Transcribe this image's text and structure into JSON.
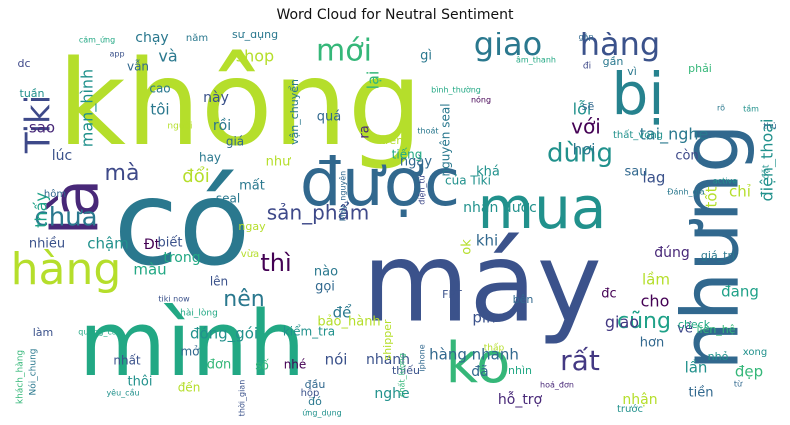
{
  "chart_data": {
    "type": "wordcloud",
    "title": "Word Cloud for Neutral Sentiment",
    "background": "#ffffff",
    "colormap": "viridis",
    "words": [
      {
        "text": "không",
        "weight": 1.0,
        "color": "#b5de2b"
      },
      {
        "text": "có",
        "weight": 0.95,
        "color": "#2a788e"
      },
      {
        "text": "máy",
        "weight": 0.93,
        "color": "#3b528b"
      },
      {
        "text": "mình",
        "weight": 0.82,
        "color": "#22a884"
      },
      {
        "text": "nhưng",
        "weight": 0.8,
        "color": "#31688e"
      },
      {
        "text": "được",
        "weight": 0.65,
        "color": "#31688e"
      },
      {
        "text": "là",
        "weight": 0.62,
        "color": "#482878"
      },
      {
        "text": "mua",
        "weight": 0.58,
        "color": "#21918c"
      },
      {
        "text": "bị",
        "weight": 0.55,
        "color": "#26828e"
      },
      {
        "text": "ko",
        "weight": 0.52,
        "color": "#35b779"
      },
      {
        "text": "hàng",
        "weight": 0.42,
        "color": "#b5de2b"
      },
      {
        "text": "Tiki",
        "weight": 0.36,
        "color": "#3e4989"
      },
      {
        "text": "giao",
        "weight": 0.32,
        "color": "#2a788e"
      },
      {
        "text": "hàng",
        "weight": 0.32,
        "color": "#3b528b"
      },
      {
        "text": "mới",
        "weight": 0.29,
        "color": "#35b779"
      },
      {
        "text": "chưa",
        "weight": 0.26,
        "color": "#2a788e"
      },
      {
        "text": "dùng",
        "weight": 0.26,
        "color": "#21918c"
      },
      {
        "text": "rất",
        "weight": 0.26,
        "color": "#443983"
      },
      {
        "text": "thì",
        "weight": 0.23,
        "color": "#440154"
      },
      {
        "text": "nên",
        "weight": 0.21,
        "color": "#2a788e"
      },
      {
        "text": "mà",
        "weight": 0.2,
        "color": "#3e4989"
      },
      {
        "text": "cũng",
        "weight": 0.2,
        "color": "#1fa188"
      },
      {
        "text": "sản_phẩm",
        "weight": 0.17,
        "color": "#3e4989"
      },
      {
        "text": "với",
        "weight": 0.16,
        "color": "#440154"
      },
      {
        "text": "đổi",
        "weight": 0.14,
        "color": "#b5de2b"
      },
      {
        "text": "man_hình",
        "weight": 0.13,
        "color": "#21918c"
      },
      {
        "text": "lỗi",
        "weight": 0.13,
        "color": "#21918c"
      },
      {
        "text": "thấy",
        "weight": 0.13,
        "color": "#1fa188"
      },
      {
        "text": "điện_thoại",
        "weight": 0.13,
        "color": "#21918c"
      },
      {
        "text": "lại",
        "weight": 0.12,
        "color": "#35b779"
      },
      {
        "text": "sao",
        "weight": 0.12,
        "color": "#482878"
      },
      {
        "text": "shop",
        "weight": 0.12,
        "color": "#b5de2b"
      },
      {
        "text": "và",
        "weight": 0.12,
        "color": "#2a788e"
      },
      {
        "text": "tôi",
        "weight": 0.12,
        "color": "#2a788e"
      },
      {
        "text": "gì",
        "weight": 0.11,
        "color": "#2a788e"
      },
      {
        "text": "khi",
        "weight": 0.11,
        "color": "#31688e"
      },
      {
        "text": "chậm",
        "weight": 0.11,
        "color": "#21918c"
      },
      {
        "text": "màu",
        "weight": 0.11,
        "color": "#22a884"
      },
      {
        "text": "tai_nghe",
        "weight": 0.11,
        "color": "#2a788e"
      },
      {
        "text": "lầm",
        "weight": 0.11,
        "color": "#b5de2b"
      },
      {
        "text": "cho",
        "weight": 0.11,
        "color": "#440154"
      },
      {
        "text": "giao",
        "weight": 0.1,
        "color": "#443983"
      },
      {
        "text": "đẹp",
        "weight": 0.1,
        "color": "#35b779"
      },
      {
        "text": "hơi",
        "weight": 0.1,
        "color": "#2a788e"
      },
      {
        "text": "lag",
        "weight": 0.1,
        "color": "#3b528b"
      },
      {
        "text": "chỉ",
        "weight": 0.1,
        "color": "#b5de2b"
      },
      {
        "text": "đang",
        "weight": 0.1,
        "color": "#1fa188"
      },
      {
        "text": "tốt",
        "weight": 0.1,
        "color": "#b5de2b"
      },
      {
        "text": "lúc",
        "weight": 0.09,
        "color": "#3b528b"
      },
      {
        "text": "Đt",
        "weight": 0.09,
        "color": "#440154"
      },
      {
        "text": "đóng_gói",
        "weight": 0.09,
        "color": "#21918c"
      },
      {
        "text": "để",
        "weight": 0.09,
        "color": "#2a788e"
      },
      {
        "text": "pin",
        "weight": 0.09,
        "color": "#3b528b"
      },
      {
        "text": "hàng nhanh",
        "weight": 0.09,
        "color": "#31688e"
      },
      {
        "text": "lần",
        "weight": 0.09,
        "color": "#21918c"
      },
      {
        "text": "nói",
        "weight": 0.09,
        "color": "#3b528b"
      },
      {
        "text": "nhanh",
        "weight": 0.09,
        "color": "#3b528b"
      },
      {
        "text": "đã",
        "weight": 0.09,
        "color": "#31688e"
      },
      {
        "text": "nghe",
        "weight": 0.09,
        "color": "#21918c"
      },
      {
        "text": "hỗ_trợ",
        "weight": 0.09,
        "color": "#482878"
      },
      {
        "text": "nhận",
        "weight": 0.09,
        "color": "#b5de2b"
      },
      {
        "text": "chạy",
        "weight": 0.08,
        "color": "#2a788e"
      },
      {
        "text": "này",
        "weight": 0.08,
        "color": "#3b528b"
      },
      {
        "text": "rồi",
        "weight": 0.08,
        "color": "#2a788e"
      },
      {
        "text": "quá",
        "weight": 0.08,
        "color": "#31688e"
      },
      {
        "text": "ngày",
        "weight": 0.08,
        "color": "#31688e"
      },
      {
        "text": "như",
        "weight": 0.08,
        "color": "#b5de2b"
      },
      {
        "text": "mất",
        "weight": 0.08,
        "color": "#2a788e"
      },
      {
        "text": "khá",
        "weight": 0.08,
        "color": "#21918c"
      },
      {
        "text": "nhận được",
        "weight": 0.08,
        "color": "#21918c"
      },
      {
        "text": "trong",
        "weight": 0.08,
        "color": "#22a884"
      },
      {
        "text": "biết",
        "weight": 0.08,
        "color": "#3b528b"
      },
      {
        "text": "đúng",
        "weight": 0.08,
        "color": "#482878"
      },
      {
        "text": "còn",
        "weight": 0.08,
        "color": "#3e4989"
      },
      {
        "text": "sau",
        "weight": 0.08,
        "color": "#31688e"
      },
      {
        "text": "nhiều",
        "weight": 0.07,
        "color": "#3b528b"
      },
      {
        "text": "gọi",
        "weight": 0.07,
        "color": "#31688e"
      },
      {
        "text": "lên",
        "weight": 0.07,
        "color": "#3b528b"
      },
      {
        "text": "nào",
        "weight": 0.07,
        "color": "#2a788e"
      },
      {
        "text": "hơn",
        "weight": 0.07,
        "color": "#31688e"
      },
      {
        "text": "đc",
        "weight": 0.07,
        "color": "#440154"
      },
      {
        "text": "bảo_hành",
        "weight": 0.07,
        "color": "#b5de2b"
      },
      {
        "text": "đơn",
        "weight": 0.07,
        "color": "#35b779"
      },
      {
        "text": "thôi",
        "weight": 0.07,
        "color": "#21918c"
      },
      {
        "text": "về",
        "weight": 0.07,
        "color": "#3e4989"
      },
      {
        "text": "tiền",
        "weight": 0.07,
        "color": "#31688e"
      },
      {
        "text": "ra",
        "weight": 0.07,
        "color": "#482878"
      },
      {
        "text": "ok",
        "weight": 0.07,
        "color": "#b5de2b"
      },
      {
        "text": "vẫn",
        "weight": 0.06,
        "color": "#31688e"
      },
      {
        "text": "cao",
        "weight": 0.06,
        "color": "#2a788e"
      },
      {
        "text": "giá",
        "weight": 0.06,
        "color": "#31688e"
      },
      {
        "text": "seal",
        "weight": 0.06,
        "color": "#2a788e"
      },
      {
        "text": "hay",
        "weight": 0.06,
        "color": "#2a788e"
      },
      {
        "text": "của Tiki",
        "weight": 0.06,
        "color": "#21918c"
      },
      {
        "text": "trên",
        "weight": 0.06,
        "color": "#b5de2b"
      },
      {
        "text": "tiếng",
        "weight": 0.06,
        "color": "#22a884"
      },
      {
        "text": "sẽ",
        "weight": 0.06,
        "color": "#31688e"
      },
      {
        "text": "nhất",
        "weight": 0.06,
        "color": "#3b528b"
      },
      {
        "text": "mở",
        "weight": 0.06,
        "color": "#31688e"
      },
      {
        "text": "số",
        "weight": 0.06,
        "color": "#35b779"
      },
      {
        "text": "nhé",
        "weight": 0.06,
        "color": "#440154"
      },
      {
        "text": "đến",
        "weight": 0.06,
        "color": "#b5de2b"
      },
      {
        "text": "đầu",
        "weight": 0.06,
        "color": "#31688e"
      },
      {
        "text": "nhìn",
        "weight": 0.06,
        "color": "#22a884"
      },
      {
        "text": "liên_hệ",
        "weight": 0.06,
        "color": "#35b779"
      },
      {
        "text": "nguyên seal",
        "weight": 0.06,
        "color": "#2a788e"
      },
      {
        "text": "kiểm_tra",
        "weight": 0.06,
        "color": "#21918c"
      },
      {
        "text": "FPT",
        "weight": 0.05,
        "color": "#3b528b"
      },
      {
        "text": "làm",
        "weight": 0.05,
        "color": "#3b528b"
      },
      {
        "text": "tuần",
        "weight": 0.05,
        "color": "#21918c"
      },
      {
        "text": "dc",
        "weight": 0.05,
        "color": "#3e4989"
      },
      {
        "text": "phải",
        "weight": 0.05,
        "color": "#35b779"
      },
      {
        "text": "vì",
        "weight": 0.05,
        "color": "#2a788e"
      },
      {
        "text": "gần",
        "weight": 0.05,
        "color": "#2a788e"
      },
      {
        "text": "năm",
        "weight": 0.05,
        "color": "#2a788e"
      },
      {
        "text": "sử_dụng",
        "weight": 0.05,
        "color": "#2a788e"
      },
      {
        "text": "vận_chuyển",
        "weight": 0.05,
        "color": "#2a788e"
      },
      {
        "text": "ngay",
        "weight": 0.05,
        "color": "#b5de2b"
      },
      {
        "text": "vừa",
        "weight": 0.05,
        "color": "#b5de2b"
      },
      {
        "text": "hộp",
        "weight": 0.05,
        "color": "#3b528b"
      },
      {
        "text": "đó",
        "weight": 0.05,
        "color": "#2a788e"
      },
      {
        "text": "thiếu",
        "weight": 0.05,
        "color": "#3b528b"
      },
      {
        "text": "nhỏ",
        "weight": 0.05,
        "color": "#21918c"
      },
      {
        "text": "xong",
        "weight": 0.05,
        "color": "#21918c"
      },
      {
        "text": "bên",
        "weight": 0.05,
        "color": "#31688e"
      },
      {
        "text": "giá_trị",
        "weight": 0.05,
        "color": "#2a788e"
      },
      {
        "text": "check",
        "weight": 0.05,
        "color": "#22a884"
      },
      {
        "text": "shipper",
        "weight": 0.05,
        "color": "#b5de2b"
      },
      {
        "text": "hôm",
        "weight": 0.05,
        "color": "#31688e"
      },
      {
        "text": "Nói_chung",
        "weight": 0.05,
        "color": "#2a788e"
      },
      {
        "text": "khách_hàng",
        "weight": 0.04,
        "color": "#35b779"
      },
      {
        "text": "thất_vọng",
        "weight": 0.04,
        "color": "#21918c"
      },
      {
        "text": "trước",
        "weight": 0.04,
        "color": "#21918c"
      },
      {
        "text": "thời_gian",
        "weight": 0.04,
        "color": "#3b528b"
      },
      {
        "text": "người",
        "weight": 0.04,
        "color": "#b5de2b"
      },
      {
        "text": "hài_lòng",
        "weight": 0.04,
        "color": "#22a884"
      },
      {
        "text": "âm_thanh",
        "weight": 0.03,
        "color": "#22a884"
      },
      {
        "text": "bình_thường",
        "weight": 0.03,
        "color": "#22a884"
      },
      {
        "text": "Máy_nguyên",
        "weight": 0.03,
        "color": "#31688e"
      },
      {
        "text": "điện_tử",
        "weight": 0.03,
        "color": "#3e4989"
      },
      {
        "text": "chất_lượng",
        "weight": 0.03,
        "color": "#35b779"
      },
      {
        "text": "cảm_ứng",
        "weight": 0.03,
        "color": "#22a884"
      },
      {
        "text": "tiki now",
        "weight": 0.03,
        "color": "#3b528b"
      },
      {
        "text": "quảng_cáo",
        "weight": 0.03,
        "color": "#22a884"
      },
      {
        "text": "yêu_cầu",
        "weight": 0.03,
        "color": "#21918c"
      },
      {
        "text": "ứng_dụng",
        "weight": 0.03,
        "color": "#21918c"
      },
      {
        "text": "iphone",
        "weight": 0.03,
        "color": "#31688e"
      },
      {
        "text": "thấp",
        "weight": 0.03,
        "color": "#b5de2b"
      },
      {
        "text": "tầm",
        "weight": 0.03,
        "color": "#21918c"
      },
      {
        "text": "hoá_đơn",
        "weight": 0.03,
        "color": "#482878"
      },
      {
        "text": "Đánh_giá",
        "weight": 0.03,
        "color": "#2a788e"
      },
      {
        "text": "active",
        "weight": 0.03,
        "color": "#21918c"
      },
      {
        "text": "rõ",
        "weight": 0.03,
        "color": "#2a788e"
      },
      {
        "text": "nóng",
        "weight": 0.03,
        "color": "#440154"
      },
      {
        "text": "thoát",
        "weight": 0.03,
        "color": "#2a788e"
      },
      {
        "text": "app",
        "weight": 0.03,
        "color": "#3b528b"
      },
      {
        "text": "đặt",
        "weight": 0.03,
        "color": "#21918c"
      },
      {
        "text": "gặp",
        "weight": 0.03,
        "color": "#31688e"
      },
      {
        "text": "thử",
        "weight": 0.03,
        "color": "#31688e"
      },
      {
        "text": "từ",
        "weight": 0.03,
        "color": "#31688e"
      },
      {
        "text": "đi",
        "weight": 0.03,
        "color": "#3e4989"
      }
    ]
  }
}
